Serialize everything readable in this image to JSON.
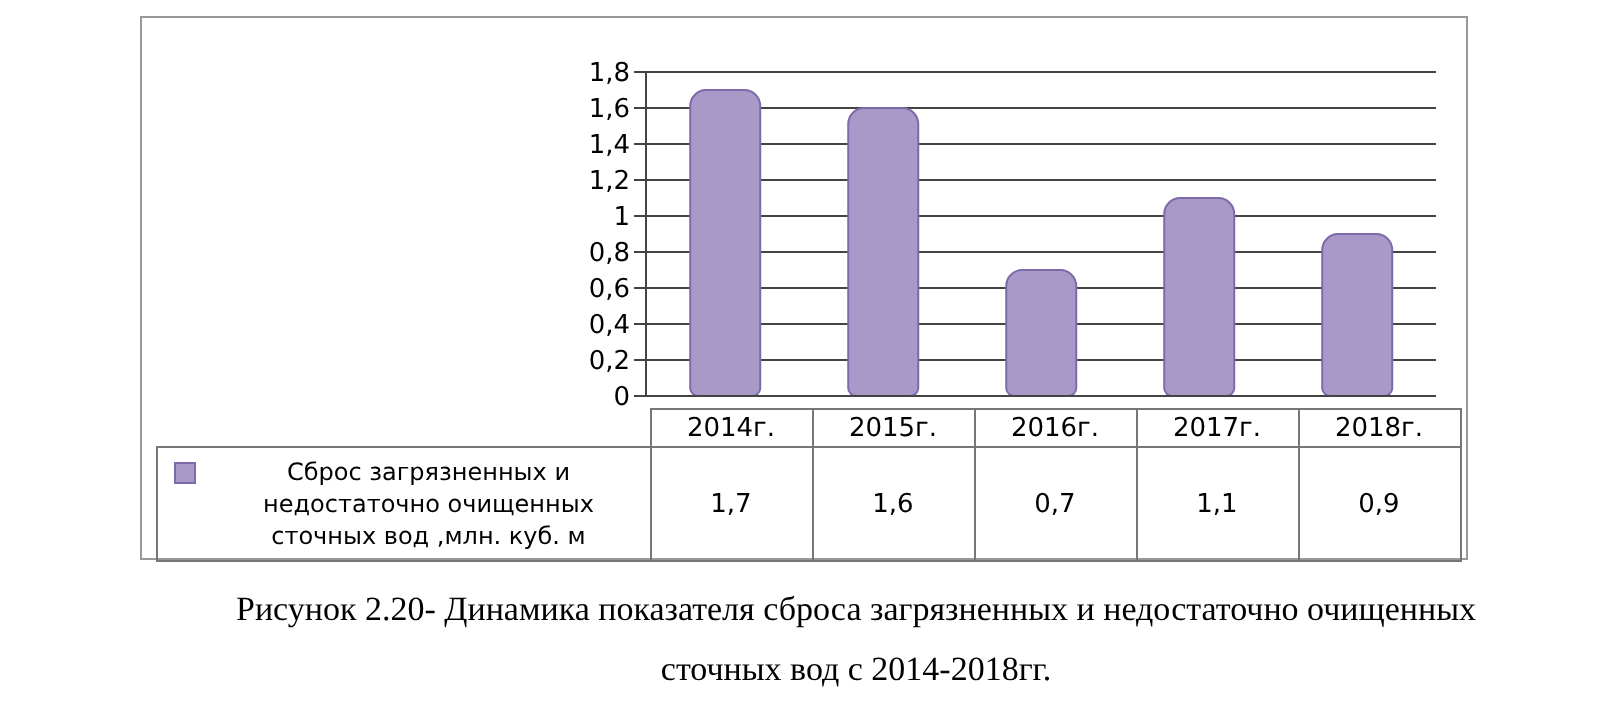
{
  "chart_data": {
    "type": "bar",
    "categories": [
      "2014г.",
      "2015г.",
      "2016г.",
      "2017г.",
      "2018г."
    ],
    "series": [
      {
        "name": "Сброс загрязненных и недостаточно очищенных сточных вод ,млн. куб. м",
        "color": "#a899c8",
        "values": [
          1.7,
          1.6,
          0.7,
          1.1,
          0.9
        ],
        "value_labels": [
          "1,7",
          "1,6",
          "0,7",
          "1,1",
          "0,9"
        ]
      }
    ],
    "ylim": [
      0,
      1.8
    ],
    "yticks": [
      {
        "value": 0,
        "label": "0"
      },
      {
        "value": 0.2,
        "label": "0,2"
      },
      {
        "value": 0.4,
        "label": "0,4"
      },
      {
        "value": 0.6,
        "label": "0,6"
      },
      {
        "value": 0.8,
        "label": "0,8"
      },
      {
        "value": 1,
        "label": "1"
      },
      {
        "value": 1.2,
        "label": "1,2"
      },
      {
        "value": 1.4,
        "label": "1,4"
      },
      {
        "value": 1.6,
        "label": "1,6"
      },
      {
        "value": 1.8,
        "label": "1,8"
      }
    ],
    "grid": "y",
    "legend": "bottom left",
    "annotations": [
      "Рисунок 2.20- Динамика показателя сброса загрязненных и недостаточно очищенных сточных вод с 2014-2018гг."
    ]
  }
}
